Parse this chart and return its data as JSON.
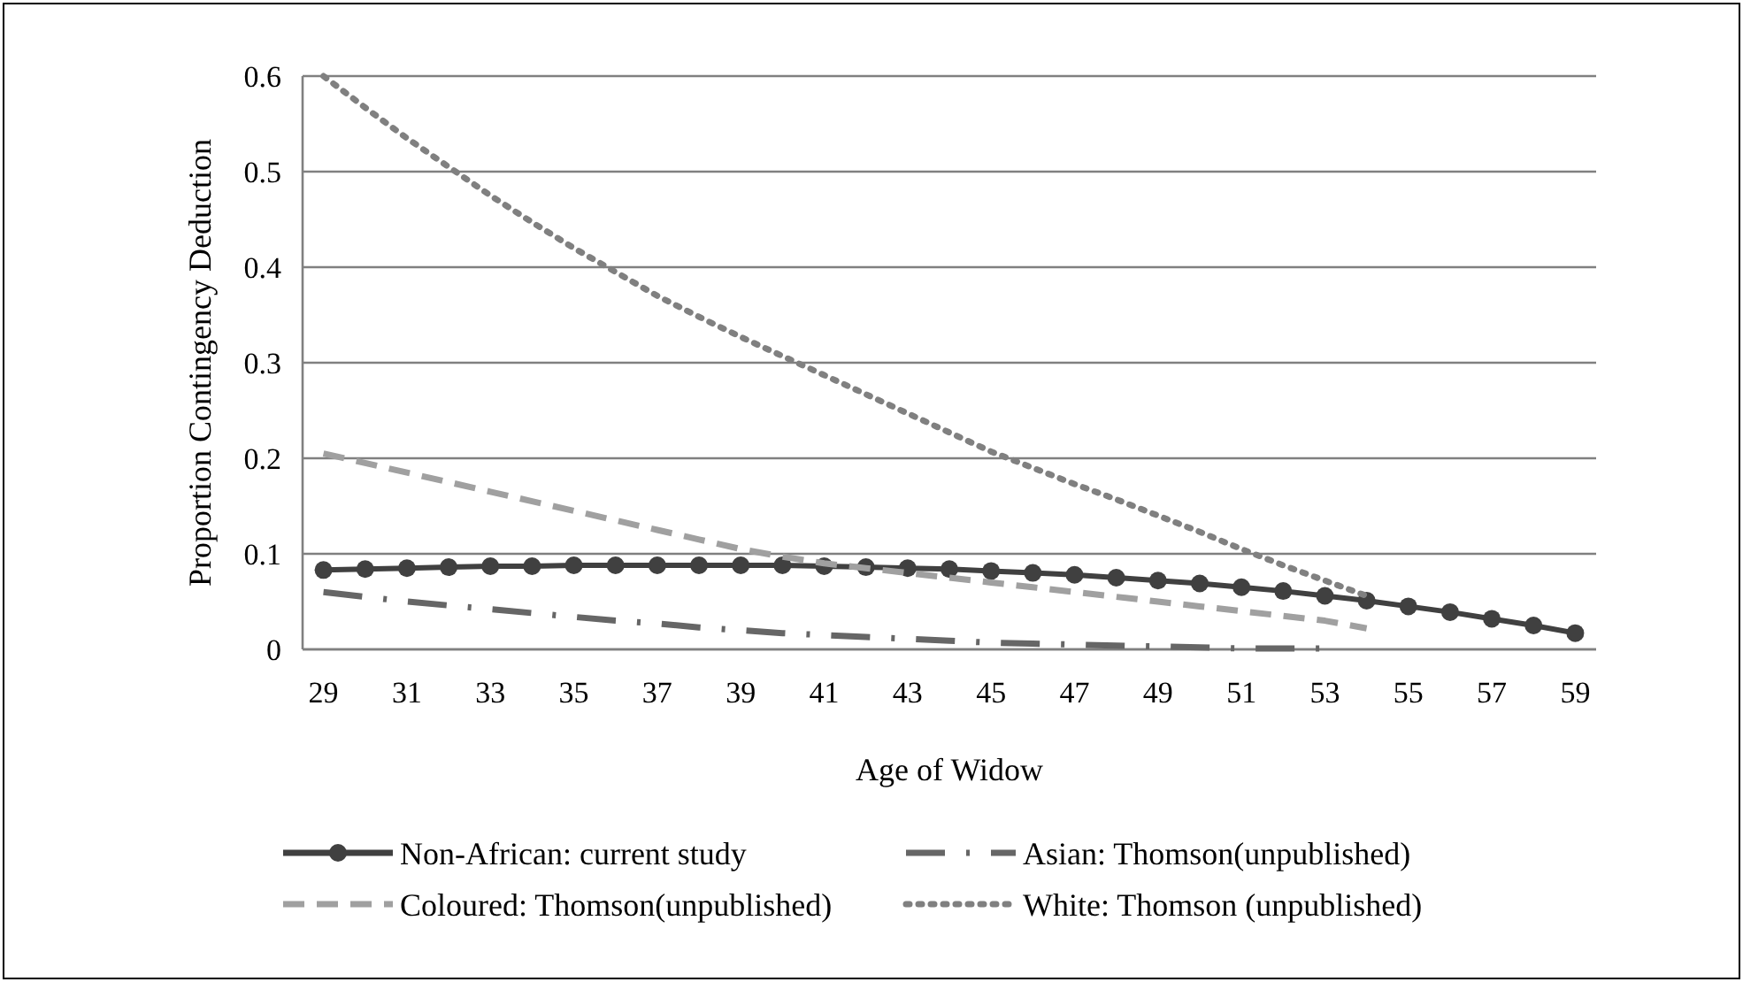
{
  "chart_data": {
    "type": "line",
    "xlabel": "Age of Widow",
    "ylabel": "Proportion Contingency Deduction",
    "categories": [
      "29",
      null,
      "31",
      null,
      "33",
      null,
      "35",
      null,
      "37",
      null,
      "39",
      null,
      "41",
      null,
      "43",
      null,
      "45",
      null,
      "47",
      null,
      "49",
      null,
      "51",
      null,
      "53",
      null,
      "55",
      null,
      "57",
      null,
      "59"
    ],
    "series": [
      {
        "name": "Non-African: current study",
        "color": "#404040",
        "marker": "circle",
        "line_style": "solid",
        "values": [
          0.083,
          0.084,
          0.085,
          0.086,
          0.087,
          0.087,
          0.088,
          0.088,
          0.088,
          0.088,
          0.088,
          0.088,
          0.087,
          0.086,
          0.085,
          0.084,
          0.082,
          0.08,
          0.078,
          0.075,
          0.072,
          0.069,
          0.065,
          0.061,
          0.056,
          0.051,
          0.045,
          0.039,
          0.032,
          0.025,
          0.017
        ]
      },
      {
        "name": "Asian: Thomson(unpublished)",
        "color": "#666666",
        "marker": "none",
        "line_style": "dashdot",
        "values": [
          0.06,
          0.055,
          0.05,
          0.046,
          0.042,
          0.038,
          0.034,
          0.03,
          0.027,
          0.023,
          0.02,
          0.017,
          0.015,
          0.013,
          0.011,
          0.009,
          0.007,
          0.006,
          0.005,
          0.004,
          0.003,
          0.002,
          0.001,
          0.001,
          0.001,
          null,
          null,
          null,
          null,
          null,
          null
        ]
      },
      {
        "name": "Coloured: Thomson(unpublished)",
        "color": "#a0a0a0",
        "marker": "none",
        "line_style": "dashed",
        "values": [
          0.205,
          0.195,
          0.185,
          0.175,
          0.165,
          0.155,
          0.145,
          0.135,
          0.125,
          0.115,
          0.105,
          0.097,
          0.09,
          0.085,
          0.08,
          0.075,
          0.07,
          0.065,
          0.06,
          0.055,
          0.05,
          0.045,
          0.04,
          0.035,
          0.03,
          0.022,
          null,
          null,
          null,
          null,
          null
        ]
      },
      {
        "name": "White: Thomson (unpublished)",
        "color": "#808080",
        "marker": "none",
        "line_style": "dotted",
        "values": [
          0.6,
          0.567,
          0.535,
          0.505,
          0.475,
          0.447,
          0.42,
          0.395,
          0.37,
          0.348,
          0.327,
          0.307,
          0.287,
          0.267,
          0.247,
          0.227,
          0.207,
          0.19,
          0.173,
          0.157,
          0.14,
          0.123,
          0.105,
          0.088,
          0.072,
          0.056,
          null,
          null,
          null,
          null,
          null
        ]
      }
    ],
    "ylim": [
      0,
      0.6
    ],
    "yticks": [
      0,
      0.1,
      0.2,
      0.3,
      0.4,
      0.5,
      0.6
    ],
    "grid": "y",
    "legend": "bottom"
  }
}
